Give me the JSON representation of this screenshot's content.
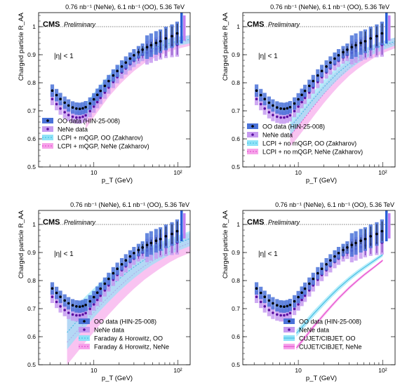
{
  "colors": {
    "oo_marker": "#000000",
    "nene_marker": "#5a0fa0",
    "oo_box": "#4a72d8",
    "nene_box": "#c69af0",
    "oo_theory": "#8fe3f7",
    "nene_theory": "#f6a3ea",
    "oo_line": "#39b7e0",
    "nene_line": "#e23bc8",
    "global_oo": "#2a5fd8",
    "global_nene": "#c27ff0"
  },
  "chart_data": [
    {
      "type": "scatter",
      "panel": "top-left",
      "header": "0.76 nb⁻¹ (NeNe), 6.1 nb⁻¹ (OO), 5.36 TeV",
      "cms_label": "CMS",
      "prelim_label": "Preliminary",
      "eta_label": "|η| < 1",
      "xlabel": "p_T (GeV)",
      "ylabel": "Charged particle R_AA",
      "xscale": "log",
      "xlim": [
        2.2,
        140
      ],
      "ylim": [
        0.5,
        1.05
      ],
      "yticks": [
        "0.5",
        "0.6",
        "0.7",
        "0.8",
        "0.9",
        "1"
      ],
      "xticks": [
        "10",
        "10²"
      ],
      "legend_position": "bottom-left",
      "theory_xmin": 8,
      "legend": [
        "OO data (HIN-25-008)",
        "NeNe data",
        "LCPI + mQGP, OO (Zakharov)",
        "LCPI + mQGP, NeNe (Zakharov)"
      ],
      "theory_kind": "band",
      "series": [
        {
          "name": "OO data (HIN-25-008)",
          "x": [
            3.2,
            3.6,
            4.0,
            4.5,
            5.0,
            5.6,
            6.2,
            6.8,
            7.4,
            8.0,
            9.0,
            10.0,
            11.0,
            12.0,
            13.5,
            15.0,
            17.0,
            19.0,
            21.5,
            24.0,
            27.0,
            30.0,
            34.0,
            38.0,
            43.0,
            48.0,
            55.0,
            62.0,
            72.0,
            85.0,
            98.0
          ],
          "y": [
            0.772,
            0.756,
            0.742,
            0.729,
            0.719,
            0.712,
            0.708,
            0.707,
            0.709,
            0.713,
            0.726,
            0.741,
            0.757,
            0.771,
            0.789,
            0.806,
            0.826,
            0.842,
            0.858,
            0.872,
            0.886,
            0.898,
            0.909,
            0.918,
            0.927,
            0.934,
            0.942,
            0.948,
            0.958,
            0.966,
            0.976
          ]
        },
        {
          "name": "NeNe data",
          "x": [
            3.2,
            3.6,
            4.0,
            4.5,
            5.0,
            5.6,
            6.2,
            6.8,
            7.4,
            8.0,
            9.0,
            10.0,
            11.0,
            12.0,
            13.5,
            15.0,
            17.0,
            19.0,
            21.5,
            24.0,
            27.0,
            30.0,
            34.0,
            38.0,
            43.0,
            48.0,
            55.0,
            62.0,
            72.0,
            85.0,
            98.0
          ],
          "y": [
            0.742,
            0.724,
            0.708,
            0.695,
            0.685,
            0.679,
            0.676,
            0.676,
            0.679,
            0.684,
            0.699,
            0.715,
            0.731,
            0.746,
            0.765,
            0.783,
            0.803,
            0.82,
            0.837,
            0.851,
            0.866,
            0.878,
            0.89,
            0.899,
            0.907,
            0.913,
            0.92,
            0.925,
            0.93,
            0.933,
            0.935
          ]
        },
        {
          "name": "LCPI + mQGP, OO (Zakharov)",
          "x": [
            8,
            10,
            12,
            15,
            20,
            25,
            30,
            40,
            50,
            60,
            80,
            100,
            140
          ],
          "y": [
            0.696,
            0.735,
            0.765,
            0.8,
            0.838,
            0.863,
            0.882,
            0.906,
            0.92,
            0.93,
            0.941,
            0.948,
            0.955
          ]
        },
        {
          "name": "LCPI + mQGP, NeNe (Zakharov)",
          "x": [
            8,
            10,
            12,
            15,
            20,
            25,
            30,
            40,
            50,
            60,
            80,
            100,
            140
          ],
          "y": [
            0.676,
            0.716,
            0.747,
            0.785,
            0.825,
            0.852,
            0.872,
            0.898,
            0.912,
            0.923,
            0.935,
            0.943,
            0.951
          ]
        }
      ]
    },
    {
      "type": "scatter",
      "panel": "top-right",
      "header": "0.76 nb⁻¹ (NeNe), 6.1 nb⁻¹ (OO), 5.36 TeV",
      "cms_label": "CMS",
      "prelim_label": "Preliminary",
      "eta_label": "|η| < 1",
      "xlabel": "p_T (GeV)",
      "ylabel": "Charged particle R_AA",
      "xscale": "log",
      "xlim": [
        2.2,
        140
      ],
      "ylim": [
        0.5,
        1.05
      ],
      "yticks": [
        "0.5",
        "0.6",
        "0.7",
        "0.8",
        "0.9",
        "1"
      ],
      "xticks": [
        "10",
        "10²"
      ],
      "legend_position": "bottom-left",
      "theory_xmin": 8,
      "legend": [
        "OO data (HIN-25-008)",
        "NeNe data",
        "LCPI + no mQGP, OO (Zakharov)",
        "LCPI + no mQGP, NeNe (Zakharov)"
      ],
      "theory_kind": "band",
      "series": [
        {
          "name": "OO data (HIN-25-008)",
          "x": [
            3.2,
            3.6,
            4.0,
            4.5,
            5.0,
            5.6,
            6.2,
            6.8,
            7.4,
            8.0,
            9.0,
            10.0,
            11.0,
            12.0,
            13.5,
            15.0,
            17.0,
            19.0,
            21.5,
            24.0,
            27.0,
            30.0,
            34.0,
            38.0,
            43.0,
            48.0,
            55.0,
            62.0,
            72.0,
            85.0,
            98.0
          ],
          "y": [
            0.772,
            0.756,
            0.742,
            0.729,
            0.719,
            0.712,
            0.708,
            0.707,
            0.709,
            0.713,
            0.726,
            0.741,
            0.757,
            0.771,
            0.789,
            0.806,
            0.826,
            0.842,
            0.858,
            0.872,
            0.886,
            0.898,
            0.909,
            0.918,
            0.927,
            0.934,
            0.942,
            0.948,
            0.958,
            0.966,
            0.976
          ]
        },
        {
          "name": "NeNe data",
          "x": [
            3.2,
            3.6,
            4.0,
            4.5,
            5.0,
            5.6,
            6.2,
            6.8,
            7.4,
            8.0,
            9.0,
            10.0,
            11.0,
            12.0,
            13.5,
            15.0,
            17.0,
            19.0,
            21.5,
            24.0,
            27.0,
            30.0,
            34.0,
            38.0,
            43.0,
            48.0,
            55.0,
            62.0,
            72.0,
            85.0,
            98.0
          ],
          "y": [
            0.742,
            0.724,
            0.708,
            0.695,
            0.685,
            0.679,
            0.676,
            0.676,
            0.679,
            0.684,
            0.699,
            0.715,
            0.731,
            0.746,
            0.765,
            0.783,
            0.803,
            0.82,
            0.837,
            0.851,
            0.866,
            0.878,
            0.89,
            0.899,
            0.907,
            0.913,
            0.92,
            0.925,
            0.93,
            0.933,
            0.935
          ]
        },
        {
          "name": "LCPI + no mQGP, OO (Zakharov)",
          "x": [
            8,
            10,
            12,
            15,
            20,
            25,
            30,
            40,
            50,
            60,
            80,
            100,
            140
          ],
          "y": [
            0.642,
            0.676,
            0.705,
            0.741,
            0.784,
            0.814,
            0.837,
            0.868,
            0.888,
            0.902,
            0.921,
            0.933,
            0.947
          ]
        },
        {
          "name": "LCPI + no mQGP, NeNe (Zakharov)",
          "x": [
            8,
            10,
            12,
            15,
            20,
            25,
            30,
            40,
            50,
            60,
            80,
            100,
            140
          ],
          "y": [
            0.612,
            0.646,
            0.676,
            0.714,
            0.76,
            0.793,
            0.818,
            0.853,
            0.875,
            0.891,
            0.913,
            0.927,
            0.942
          ]
        }
      ]
    },
    {
      "type": "scatter",
      "panel": "bottom-left",
      "header": "0.76 nb⁻¹ (NeNe), 6.1 nb⁻¹ (OO), 5.36 TeV",
      "cms_label": "CMS",
      "prelim_label": "Preliminary",
      "eta_label": "|η| < 1",
      "xlabel": "p_T (GeV)",
      "ylabel": "Charged particle R_AA",
      "xscale": "log",
      "xlim": [
        2.2,
        140
      ],
      "ylim": [
        0.5,
        1.05
      ],
      "yticks": [
        "0.5",
        "0.6",
        "0.7",
        "0.8",
        "0.9",
        "1"
      ],
      "xticks": [
        "10",
        "10²"
      ],
      "legend_position": "bottom-left",
      "theory_xmin": 4.8,
      "legend": [
        "OO data (HIN-25-008)",
        "NeNe data",
        "Faraday & Horowitz, OO",
        "Faraday & Horowitz, NeNe"
      ],
      "theory_kind": "wideband",
      "series": [
        {
          "name": "OO data (HIN-25-008)",
          "x": [
            3.2,
            3.6,
            4.0,
            4.5,
            5.0,
            5.6,
            6.2,
            6.8,
            7.4,
            8.0,
            9.0,
            10.0,
            11.0,
            12.0,
            13.5,
            15.0,
            17.0,
            19.0,
            21.5,
            24.0,
            27.0,
            30.0,
            34.0,
            38.0,
            43.0,
            48.0,
            55.0,
            62.0,
            72.0,
            85.0,
            98.0
          ],
          "y": [
            0.772,
            0.756,
            0.742,
            0.729,
            0.719,
            0.712,
            0.708,
            0.707,
            0.709,
            0.713,
            0.726,
            0.741,
            0.757,
            0.771,
            0.789,
            0.806,
            0.826,
            0.842,
            0.858,
            0.872,
            0.886,
            0.898,
            0.909,
            0.918,
            0.927,
            0.934,
            0.942,
            0.948,
            0.958,
            0.966,
            0.976
          ]
        },
        {
          "name": "NeNe data",
          "x": [
            3.2,
            3.6,
            4.0,
            4.5,
            5.0,
            5.6,
            6.2,
            6.8,
            7.4,
            8.0,
            9.0,
            10.0,
            11.0,
            12.0,
            13.5,
            15.0,
            17.0,
            19.0,
            21.5,
            24.0,
            27.0,
            30.0,
            34.0,
            38.0,
            43.0,
            48.0,
            55.0,
            62.0,
            72.0,
            85.0,
            98.0
          ],
          "y": [
            0.742,
            0.724,
            0.708,
            0.695,
            0.685,
            0.679,
            0.676,
            0.676,
            0.679,
            0.684,
            0.699,
            0.715,
            0.731,
            0.746,
            0.765,
            0.783,
            0.803,
            0.82,
            0.837,
            0.851,
            0.866,
            0.878,
            0.89,
            0.899,
            0.907,
            0.913,
            0.92,
            0.925,
            0.93,
            0.933,
            0.935
          ]
        },
        {
          "name": "Faraday & Horowitz, OO",
          "x": [
            4.8,
            6,
            8,
            10,
            12,
            15,
            20,
            25,
            30,
            40,
            50,
            60,
            80,
            100,
            140
          ],
          "y": [
            0.615,
            0.648,
            0.69,
            0.72,
            0.744,
            0.772,
            0.806,
            0.83,
            0.848,
            0.874,
            0.891,
            0.903,
            0.921,
            0.933,
            0.95
          ]
        },
        {
          "name": "Faraday & Horowitz, NeNe",
          "x": [
            4.8,
            6,
            8,
            10,
            12,
            15,
            20,
            25,
            30,
            40,
            50,
            60,
            80,
            100,
            140
          ],
          "y": [
            0.58,
            0.612,
            0.654,
            0.686,
            0.712,
            0.742,
            0.778,
            0.804,
            0.824,
            0.852,
            0.87,
            0.884,
            0.904,
            0.917,
            0.935
          ]
        }
      ]
    },
    {
      "type": "scatter",
      "panel": "bottom-right",
      "header": "0.76 nb⁻¹ (NeNe), 6.1 nb⁻¹ (OO), 5.36 TeV",
      "cms_label": "CMS",
      "prelim_label": "Preliminary",
      "eta_label": "|η| < 1",
      "xlabel": "p_T (GeV)",
      "ylabel": "Charged particle R_AA",
      "xscale": "log",
      "xlim": [
        2.2,
        140
      ],
      "ylim": [
        0.5,
        1.05
      ],
      "yticks": [
        "0.5",
        "0.6",
        "0.7",
        "0.8",
        "0.9",
        "1"
      ],
      "xticks": [
        "10",
        "10²"
      ],
      "legend_position": "bottom-right",
      "theory_xmin": 9.5,
      "legend": [
        "OO data (HIN-25-008)",
        "NeNe data",
        "CUJET/CIBJET, OO",
        "CUJET/CIBJET, NeNe"
      ],
      "theory_kind": "line",
      "series": [
        {
          "name": "OO data (HIN-25-008)",
          "x": [
            3.2,
            3.6,
            4.0,
            4.5,
            5.0,
            5.6,
            6.2,
            6.8,
            7.4,
            8.0,
            9.0,
            10.0,
            11.0,
            12.0,
            13.5,
            15.0,
            17.0,
            19.0,
            21.5,
            24.0,
            27.0,
            30.0,
            34.0,
            38.0,
            43.0,
            48.0,
            55.0,
            62.0,
            72.0,
            85.0,
            98.0
          ],
          "y": [
            0.772,
            0.756,
            0.742,
            0.729,
            0.719,
            0.712,
            0.708,
            0.707,
            0.709,
            0.713,
            0.726,
            0.741,
            0.757,
            0.771,
            0.789,
            0.806,
            0.826,
            0.842,
            0.858,
            0.872,
            0.886,
            0.898,
            0.909,
            0.918,
            0.927,
            0.934,
            0.942,
            0.948,
            0.958,
            0.966,
            0.976
          ]
        },
        {
          "name": "NeNe data",
          "x": [
            3.2,
            3.6,
            4.0,
            4.5,
            5.0,
            5.6,
            6.2,
            6.8,
            7.4,
            8.0,
            9.0,
            10.0,
            11.0,
            12.0,
            13.5,
            15.0,
            17.0,
            19.0,
            21.5,
            24.0,
            27.0,
            30.0,
            34.0,
            38.0,
            43.0,
            48.0,
            55.0,
            62.0,
            72.0,
            85.0,
            98.0
          ],
          "y": [
            0.742,
            0.724,
            0.708,
            0.695,
            0.685,
            0.679,
            0.676,
            0.676,
            0.679,
            0.684,
            0.699,
            0.715,
            0.731,
            0.746,
            0.765,
            0.783,
            0.803,
            0.82,
            0.837,
            0.851,
            0.866,
            0.878,
            0.89,
            0.899,
            0.907,
            0.913,
            0.92,
            0.925,
            0.93,
            0.933,
            0.935
          ]
        },
        {
          "name": "CUJET/CIBJET, OO",
          "x": [
            9.5,
            12,
            15,
            20,
            25,
            30,
            40,
            50,
            60,
            80,
            100
          ],
          "y": [
            0.612,
            0.646,
            0.68,
            0.72,
            0.75,
            0.773,
            0.806,
            0.829,
            0.846,
            0.872,
            0.892
          ]
        },
        {
          "name": "CUJET/CIBJET, NeNe",
          "x": [
            9.5,
            12,
            15,
            20,
            25,
            30,
            40,
            50,
            60,
            80,
            100
          ],
          "y": [
            0.56,
            0.597,
            0.634,
            0.678,
            0.711,
            0.737,
            0.774,
            0.8,
            0.82,
            0.849,
            0.872
          ]
        }
      ]
    }
  ]
}
